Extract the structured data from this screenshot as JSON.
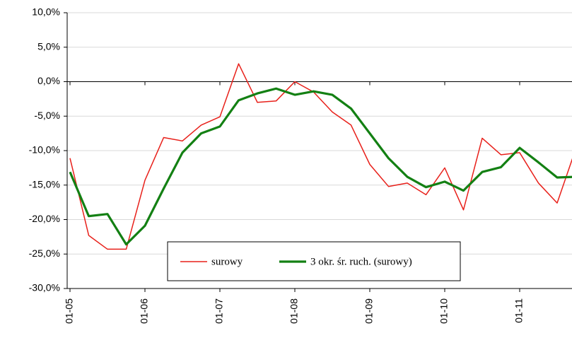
{
  "chart_data": {
    "type": "line",
    "categories": [
      "01-05",
      null,
      null,
      null,
      "01-06",
      null,
      null,
      null,
      "01-07",
      null,
      null,
      null,
      "01-08",
      null,
      null,
      null,
      "01-09",
      null,
      null,
      null,
      "01-10",
      null,
      null,
      null,
      "01-11",
      null,
      null,
      null
    ],
    "series": [
      {
        "name": "surowy",
        "color": "#e8201a",
        "values": [
          -11.1,
          -22.3,
          -24.3,
          -24.3,
          -14.3,
          -8.1,
          -8.6,
          -6.3,
          -5.1,
          2.6,
          -3.0,
          -2.8,
          0.0,
          -1.5,
          -4.4,
          -6.3,
          -12.0,
          -15.2,
          -14.7,
          -16.4,
          -12.5,
          -18.6,
          -8.2,
          -10.6,
          -10.3,
          -14.7,
          -17.6,
          -9.7
        ]
      },
      {
        "name": "3 okr. śr. ruch. (surowy)",
        "color": "#138013",
        "values": [
          -13.1,
          -19.5,
          -19.2,
          -23.6,
          -20.9,
          -15.5,
          -10.3,
          -7.5,
          -6.5,
          -2.7,
          -1.7,
          -1.0,
          -1.9,
          -1.4,
          -1.9,
          -3.9,
          -7.5,
          -11.1,
          -13.8,
          -15.3,
          -14.5,
          -15.8,
          -13.1,
          -12.4,
          -9.6,
          -11.7,
          -13.9,
          -13.8
        ]
      }
    ],
    "ylim": [
      -30,
      10
    ],
    "yticks": [
      {
        "value": -30,
        "label": "-30,0%"
      },
      {
        "value": -25,
        "label": "-25,0%"
      },
      {
        "value": -20,
        "label": "-20,0%"
      },
      {
        "value": -15,
        "label": "-15,0%"
      },
      {
        "value": -10,
        "label": "-10,0%"
      },
      {
        "value": -5,
        "label": "-5,0%"
      },
      {
        "value": 0,
        "label": "0,0%"
      },
      {
        "value": 5,
        "label": "5,0%"
      },
      {
        "value": 10,
        "label": "10,0%"
      }
    ],
    "grid": true,
    "legend": "bottom"
  }
}
